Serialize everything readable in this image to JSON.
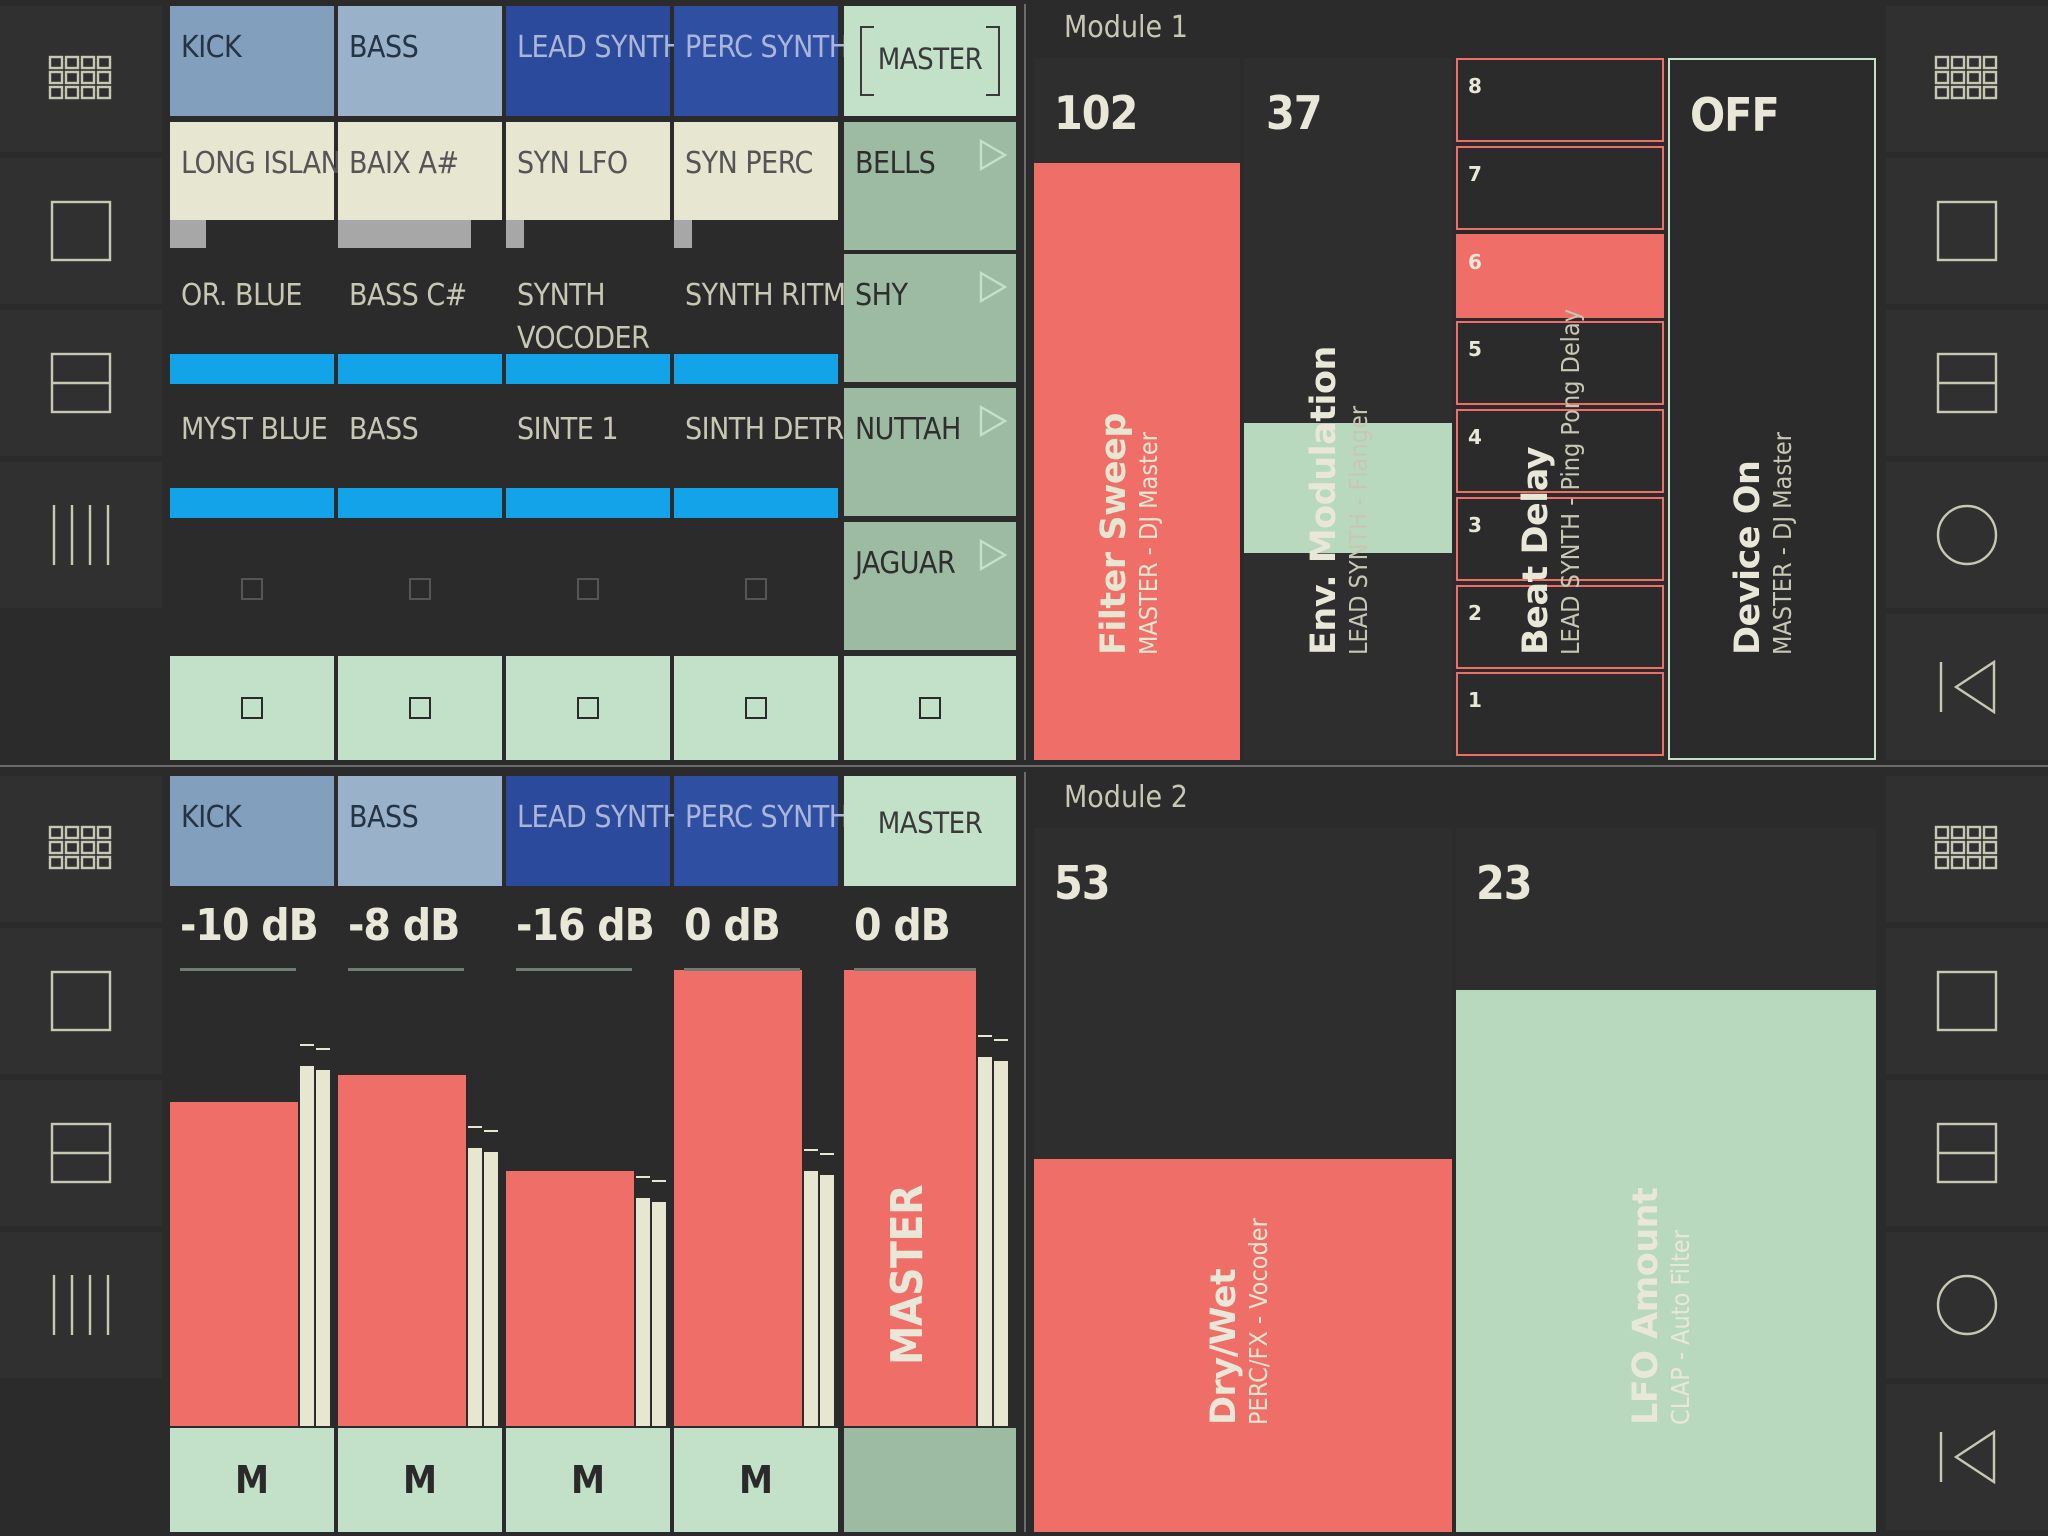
{
  "colors": {
    "salmon": "#ef6f68",
    "mint": "#c3e0c9",
    "blue": "#12a3e9",
    "cream": "#e7e6d1",
    "background": "#2b2b2b"
  },
  "nav_left": [
    "grid-icon",
    "single-square-icon",
    "split-horizontal-icon",
    "vertical-lines-icon"
  ],
  "nav_right_top": [
    "grid-icon",
    "single-square-icon",
    "split-horizontal-icon",
    "circle-icon",
    "skip-back-icon"
  ],
  "top": {
    "tracks": [
      {
        "name": "KICK",
        "clips": [
          "LONG ISLAND",
          "OR. BLUE",
          "MYST BLUE"
        ],
        "progress": 0.22
      },
      {
        "name": "BASS",
        "clips": [
          "BAIX A#",
          "BASS C#",
          "BASS"
        ],
        "progress": 0.81
      },
      {
        "name": "LEAD SYNTH",
        "clips": [
          "SYN LFO",
          "SYNTH\nVOCODER",
          "SINTE 1"
        ],
        "progress": 0.11
      },
      {
        "name": "PERC SYNTH",
        "clips": [
          "SYN PERC",
          "SYNTH RITM",
          "SINTH DETROIT"
        ],
        "progress": 0.11
      }
    ],
    "master": {
      "name": "MASTER",
      "scenes": [
        "BELLS",
        "SHY",
        "NUTTAH",
        "JAGUAR"
      ]
    }
  },
  "module1": {
    "title": "Module 1",
    "params": [
      {
        "value": "102",
        "name": "Filter Sweep",
        "sub": "MASTER - DJ Master",
        "level": 0.85
      },
      {
        "value": "37",
        "name": "Env. Modulation",
        "sub": "LEAD SYNTH - Flanger",
        "level": 0.37
      },
      {
        "name": "Beat Delay",
        "sub": "LEAD SYNTH - Ping Pong Delay",
        "steps": [
          "8",
          "7",
          "6",
          "5",
          "4",
          "3",
          "2",
          "1"
        ],
        "active_step": "6"
      },
      {
        "value": "OFF",
        "name": "Device On",
        "sub": "MASTER - DJ Master"
      }
    ]
  },
  "bottom": {
    "tracks": [
      {
        "name": "KICK",
        "db": "-10 dB",
        "mute": "M",
        "level": 0.71,
        "meter": 0.79
      },
      {
        "name": "BASS",
        "db": "-8 dB",
        "mute": "M",
        "level": 0.77,
        "meter": 0.61
      },
      {
        "name": "LEAD SYNTH",
        "db": "-16 dB",
        "mute": "M",
        "level": 0.56,
        "meter": 0.5
      },
      {
        "name": "PERC SYNTH",
        "db": "0 dB",
        "mute": "M",
        "level": 1.0,
        "meter": 0.56
      },
      {
        "name": "MASTER",
        "db": "0 dB",
        "label": "MASTER",
        "level": 1.0,
        "meter": 0.81
      }
    ]
  },
  "module2": {
    "title": "Module 2",
    "params": [
      {
        "value": "53",
        "name": "Dry/Wet",
        "sub": "PERC/FX - Vocoder",
        "level": 0.53
      },
      {
        "value": "23",
        "name": "LFO Amount",
        "sub": "CLAP - Auto Filter",
        "level": 0.77
      }
    ]
  }
}
